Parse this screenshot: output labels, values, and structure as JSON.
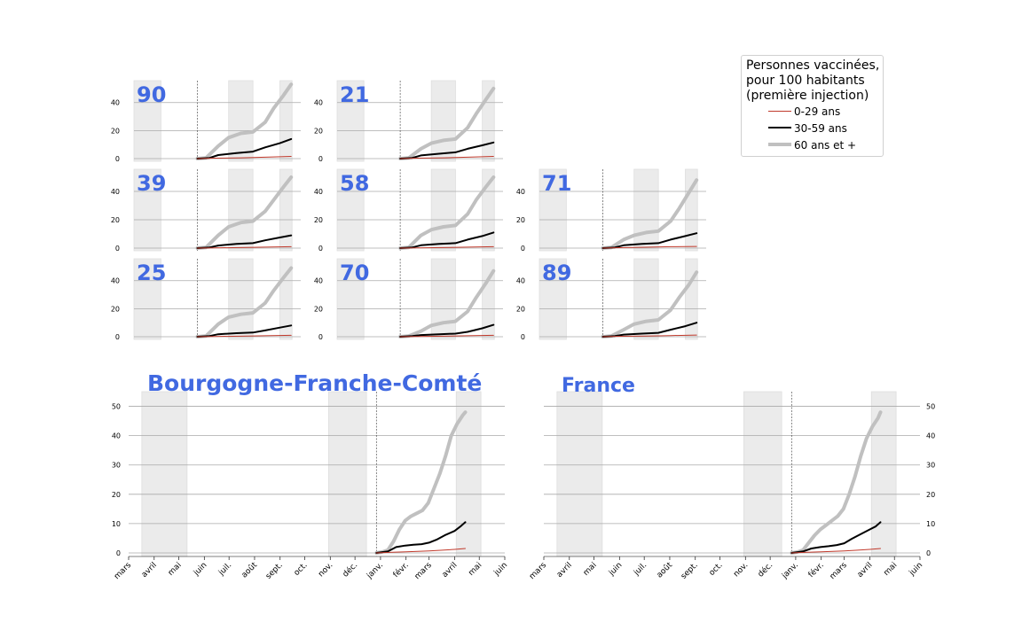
{
  "legend": {
    "title": "Personnes vaccinées,\npour 100 habitants\n(première injection)",
    "items": [
      {
        "key": "y0_29",
        "label": "0-29 ans",
        "color": "#c0392b"
      },
      {
        "key": "y30_59",
        "label": "30-59 ans",
        "color": "#000000"
      },
      {
        "key": "y60",
        "label": "60 ans et +",
        "color": "#c0c0c0"
      }
    ]
  },
  "chart_data": [
    {
      "type": "line",
      "title": "90",
      "yticks": [
        0,
        20,
        40
      ],
      "ylim": [
        -1,
        55
      ],
      "grid": true,
      "series": [
        {
          "name": "0-29 ans",
          "color": "#c0392b",
          "x": [
            "2020-12-27",
            "2021-01-15",
            "2021-02-15",
            "2021-03-15",
            "2021-04-14"
          ],
          "values": [
            0,
            0.3,
            0.6,
            1.0,
            1.6
          ]
        },
        {
          "name": "30-59 ans",
          "color": "#000000",
          "x": [
            "2020-12-27",
            "2021-01-10",
            "2021-01-20",
            "2021-02-10",
            "2021-03-01",
            "2021-03-15",
            "2021-04-01",
            "2021-04-14"
          ],
          "values": [
            0,
            0.5,
            2.5,
            4,
            5,
            8,
            11,
            14
          ]
        },
        {
          "name": "60 ans et +",
          "color": "#c0c0c0",
          "x": [
            "2020-12-27",
            "2021-01-06",
            "2021-01-20",
            "2021-02-01",
            "2021-02-15",
            "2021-03-01",
            "2021-03-15",
            "2021-03-25",
            "2021-04-05",
            "2021-04-14"
          ],
          "values": [
            0,
            0.5,
            9,
            15,
            18,
            19,
            26,
            36,
            45,
            53
          ]
        }
      ]
    },
    {
      "type": "line",
      "title": "21",
      "yticks": [
        0,
        20,
        40
      ],
      "ylim": [
        -1,
        55
      ],
      "grid": true,
      "series": [
        {
          "name": "0-29 ans",
          "color": "#c0392b",
          "x": [
            "2020-12-27",
            "2021-01-15",
            "2021-02-15",
            "2021-03-15",
            "2021-04-14"
          ],
          "values": [
            0,
            0.3,
            0.6,
            1.0,
            1.6
          ]
        },
        {
          "name": "30-59 ans",
          "color": "#000000",
          "x": [
            "2020-12-27",
            "2021-01-10",
            "2021-01-20",
            "2021-02-10",
            "2021-03-01",
            "2021-03-15",
            "2021-04-01",
            "2021-04-14"
          ],
          "values": [
            0,
            0.5,
            2.3,
            3.5,
            4.5,
            7,
            9.5,
            11.5
          ]
        },
        {
          "name": "60 ans et +",
          "color": "#c0c0c0",
          "x": [
            "2020-12-27",
            "2021-01-06",
            "2021-01-20",
            "2021-02-01",
            "2021-02-15",
            "2021-03-01",
            "2021-03-15",
            "2021-03-25",
            "2021-04-05",
            "2021-04-14"
          ],
          "values": [
            0,
            0.5,
            7,
            11,
            13,
            14,
            22,
            32,
            42,
            50
          ]
        }
      ]
    },
    {
      "type": "line",
      "title": "39",
      "yticks": [
        0,
        20,
        40
      ],
      "ylim": [
        -1,
        55
      ],
      "grid": true,
      "series": [
        {
          "name": "0-29 ans",
          "color": "#c0392b",
          "x": [
            "2020-12-27",
            "2021-01-15",
            "2021-02-15",
            "2021-03-15",
            "2021-04-14"
          ],
          "values": [
            0,
            0.2,
            0.4,
            0.7,
            1.0
          ]
        },
        {
          "name": "30-59 ans",
          "color": "#000000",
          "x": [
            "2020-12-27",
            "2021-01-10",
            "2021-01-20",
            "2021-02-10",
            "2021-03-01",
            "2021-03-15",
            "2021-04-01",
            "2021-04-14"
          ],
          "values": [
            0,
            0.5,
            1.8,
            3,
            3.5,
            5.5,
            7.5,
            9
          ]
        },
        {
          "name": "60 ans et +",
          "color": "#c0c0c0",
          "x": [
            "2020-12-27",
            "2021-01-06",
            "2021-01-20",
            "2021-02-01",
            "2021-02-15",
            "2021-03-01",
            "2021-03-15",
            "2021-03-25",
            "2021-04-05",
            "2021-04-14"
          ],
          "values": [
            0,
            0.5,
            9,
            15,
            18,
            19,
            26,
            34,
            43,
            50
          ]
        }
      ]
    },
    {
      "type": "line",
      "title": "58",
      "yticks": [
        0,
        20,
        40
      ],
      "ylim": [
        -1,
        55
      ],
      "grid": true,
      "series": [
        {
          "name": "0-29 ans",
          "color": "#c0392b",
          "x": [
            "2020-12-27",
            "2021-01-15",
            "2021-02-15",
            "2021-03-15",
            "2021-04-14"
          ],
          "values": [
            0,
            0.2,
            0.4,
            0.7,
            1.0
          ]
        },
        {
          "name": "30-59 ans",
          "color": "#000000",
          "x": [
            "2020-12-27",
            "2021-01-10",
            "2021-01-20",
            "2021-02-10",
            "2021-03-01",
            "2021-03-15",
            "2021-04-01",
            "2021-04-14"
          ],
          "values": [
            0,
            0.5,
            2,
            3,
            3.5,
            6,
            8.5,
            11
          ]
        },
        {
          "name": "60 ans et +",
          "color": "#c0c0c0",
          "x": [
            "2020-12-27",
            "2021-01-06",
            "2021-01-20",
            "2021-02-01",
            "2021-02-15",
            "2021-03-01",
            "2021-03-15",
            "2021-03-25",
            "2021-04-05",
            "2021-04-14"
          ],
          "values": [
            0,
            0.5,
            9,
            13,
            15,
            16,
            24,
            34,
            43,
            50
          ]
        }
      ]
    },
    {
      "type": "line",
      "title": "71",
      "yticks": [
        0,
        20,
        40
      ],
      "ylim": [
        -1,
        55
      ],
      "grid": true,
      "series": [
        {
          "name": "0-29 ans",
          "color": "#c0392b",
          "x": [
            "2020-12-27",
            "2021-01-15",
            "2021-02-15",
            "2021-03-15",
            "2021-04-14"
          ],
          "values": [
            0,
            0.3,
            0.6,
            1.0,
            1.2
          ]
        },
        {
          "name": "30-59 ans",
          "color": "#000000",
          "x": [
            "2020-12-27",
            "2021-01-10",
            "2021-01-20",
            "2021-02-10",
            "2021-03-01",
            "2021-03-15",
            "2021-04-01",
            "2021-04-14"
          ],
          "values": [
            0,
            0.5,
            2,
            3,
            3.5,
            6,
            8.5,
            10.5
          ]
        },
        {
          "name": "60 ans et +",
          "color": "#c0c0c0",
          "x": [
            "2020-12-27",
            "2021-01-06",
            "2021-01-20",
            "2021-02-01",
            "2021-02-15",
            "2021-03-01",
            "2021-03-15",
            "2021-03-25",
            "2021-04-05",
            "2021-04-14"
          ],
          "values": [
            0,
            0.5,
            6,
            9,
            11,
            12,
            19,
            28,
            39,
            48
          ]
        }
      ]
    },
    {
      "type": "line",
      "title": "25",
      "yticks": [
        0,
        20,
        40
      ],
      "ylim": [
        -1,
        55
      ],
      "grid": true,
      "series": [
        {
          "name": "0-29 ans",
          "color": "#c0392b",
          "x": [
            "2020-12-27",
            "2021-01-15",
            "2021-02-15",
            "2021-03-15",
            "2021-04-14"
          ],
          "values": [
            0,
            0.2,
            0.4,
            0.7,
            1.0
          ]
        },
        {
          "name": "30-59 ans",
          "color": "#000000",
          "x": [
            "2020-12-27",
            "2021-01-10",
            "2021-01-20",
            "2021-02-10",
            "2021-03-01",
            "2021-03-15",
            "2021-04-01",
            "2021-04-14"
          ],
          "values": [
            0,
            0.5,
            1.8,
            2.5,
            3,
            4.5,
            6.5,
            8
          ]
        },
        {
          "name": "60 ans et +",
          "color": "#c0c0c0",
          "x": [
            "2020-12-27",
            "2021-01-06",
            "2021-01-20",
            "2021-02-01",
            "2021-02-15",
            "2021-03-01",
            "2021-03-15",
            "2021-03-25",
            "2021-04-05",
            "2021-04-14"
          ],
          "values": [
            0,
            0.5,
            9,
            14,
            16,
            17,
            24,
            33,
            42,
            49
          ]
        }
      ]
    },
    {
      "type": "line",
      "title": "70",
      "yticks": [
        0,
        20,
        40
      ],
      "ylim": [
        -1,
        55
      ],
      "grid": true,
      "series": [
        {
          "name": "0-29 ans",
          "color": "#c0392b",
          "x": [
            "2020-12-27",
            "2021-01-15",
            "2021-02-15",
            "2021-03-15",
            "2021-04-14"
          ],
          "values": [
            0,
            0.2,
            0.4,
            0.7,
            1.0
          ]
        },
        {
          "name": "30-59 ans",
          "color": "#000000",
          "x": [
            "2020-12-27",
            "2021-01-10",
            "2021-01-20",
            "2021-02-10",
            "2021-03-01",
            "2021-03-15",
            "2021-04-01",
            "2021-04-14"
          ],
          "values": [
            0,
            0.5,
            1.2,
            1.8,
            2.2,
            3.5,
            6,
            8.5
          ]
        },
        {
          "name": "60 ans et +",
          "color": "#c0c0c0",
          "x": [
            "2020-12-27",
            "2021-01-06",
            "2021-01-20",
            "2021-02-01",
            "2021-02-15",
            "2021-03-01",
            "2021-03-15",
            "2021-03-25",
            "2021-04-05",
            "2021-04-14"
          ],
          "values": [
            0,
            0.5,
            4,
            8,
            10,
            11,
            18,
            28,
            38,
            47
          ]
        }
      ]
    },
    {
      "type": "line",
      "title": "89",
      "yticks": [
        0,
        20,
        40
      ],
      "ylim": [
        -1,
        55
      ],
      "grid": true,
      "series": [
        {
          "name": "0-29 ans",
          "color": "#c0392b",
          "x": [
            "2020-12-27",
            "2021-01-15",
            "2021-02-15",
            "2021-03-15",
            "2021-04-14"
          ],
          "values": [
            0,
            0.3,
            0.5,
            0.8,
            1.2
          ]
        },
        {
          "name": "30-59 ans",
          "color": "#000000",
          "x": [
            "2020-12-27",
            "2021-01-10",
            "2021-01-20",
            "2021-02-10",
            "2021-03-01",
            "2021-03-15",
            "2021-04-01",
            "2021-04-14"
          ],
          "values": [
            0,
            0.5,
            1.5,
            2.2,
            2.8,
            5,
            7.5,
            10
          ]
        },
        {
          "name": "60 ans et +",
          "color": "#c0c0c0",
          "x": [
            "2020-12-27",
            "2021-01-06",
            "2021-01-20",
            "2021-02-01",
            "2021-02-15",
            "2021-03-01",
            "2021-03-15",
            "2021-03-25",
            "2021-04-05",
            "2021-04-14"
          ],
          "values": [
            0,
            0.5,
            5,
            9,
            11,
            12,
            19,
            28,
            37,
            46
          ]
        }
      ]
    },
    {
      "type": "line",
      "title": "Bourgogne-Franche-Comté",
      "xticks": [
        "mars",
        "avril",
        "mai",
        "juin",
        "juil.",
        "août",
        "sept.",
        "oct.",
        "nov.",
        "déc.",
        "janv.",
        "févr.",
        "mars",
        "avril",
        "mai",
        "juin"
      ],
      "yticks": [
        0,
        10,
        20,
        30,
        40,
        50
      ],
      "ylim": [
        -1,
        56
      ],
      "grid": true,
      "series": [
        {
          "name": "0-29 ans",
          "color": "#c0392b",
          "x": [
            "2020-12-27",
            "2021-01-15",
            "2021-02-01",
            "2021-02-15",
            "2021-03-01",
            "2021-03-15",
            "2021-04-01",
            "2021-04-14"
          ],
          "values": [
            0,
            0.2,
            0.4,
            0.5,
            0.7,
            0.9,
            1.2,
            1.5
          ]
        },
        {
          "name": "30-59 ans",
          "color": "#000000",
          "x": [
            "2020-12-27",
            "2021-01-10",
            "2021-01-20",
            "2021-01-31",
            "2021-02-10",
            "2021-02-20",
            "2021-03-01",
            "2021-03-10",
            "2021-03-20",
            "2021-04-01",
            "2021-04-08",
            "2021-04-14"
          ],
          "values": [
            0,
            0.5,
            2,
            2.5,
            2.8,
            3,
            3.5,
            4.5,
            6,
            7.5,
            9,
            10.5
          ]
        },
        {
          "name": "60 ans et +",
          "color": "#c0c0c0",
          "x": [
            "2020-12-27",
            "2021-01-03",
            "2021-01-10",
            "2021-01-17",
            "2021-01-24",
            "2021-01-31",
            "2021-02-07",
            "2021-02-14",
            "2021-02-21",
            "2021-02-28",
            "2021-03-07",
            "2021-03-14",
            "2021-03-21",
            "2021-03-28",
            "2021-04-04",
            "2021-04-11",
            "2021-04-14"
          ],
          "values": [
            0,
            0.3,
            1,
            4,
            8,
            11,
            12.5,
            13.5,
            14.5,
            17,
            22,
            27,
            33,
            40,
            44,
            47,
            48
          ]
        }
      ]
    },
    {
      "type": "line",
      "title": "France",
      "xticks": [
        "mars",
        "avril",
        "mai",
        "juin",
        "juil.",
        "août",
        "sept.",
        "oct.",
        "nov.",
        "déc.",
        "janv.",
        "févr.",
        "mars",
        "avril",
        "mai",
        "juin"
      ],
      "yticks": [
        0,
        10,
        20,
        30,
        40,
        50
      ],
      "ylim": [
        -1,
        56
      ],
      "grid": true,
      "series": [
        {
          "name": "0-29 ans",
          "color": "#c0392b",
          "x": [
            "2020-12-27",
            "2021-01-15",
            "2021-02-01",
            "2021-02-15",
            "2021-03-01",
            "2021-03-15",
            "2021-04-01",
            "2021-04-14"
          ],
          "values": [
            0,
            0.2,
            0.4,
            0.5,
            0.7,
            0.9,
            1.2,
            1.5
          ]
        },
        {
          "name": "30-59 ans",
          "color": "#000000",
          "x": [
            "2020-12-27",
            "2021-01-10",
            "2021-01-20",
            "2021-01-31",
            "2021-02-10",
            "2021-02-20",
            "2021-03-01",
            "2021-03-10",
            "2021-03-20",
            "2021-04-01",
            "2021-04-08",
            "2021-04-14"
          ],
          "values": [
            0,
            0.5,
            1.5,
            2,
            2.3,
            2.7,
            3.3,
            4.8,
            6.3,
            8,
            9,
            10.5
          ]
        },
        {
          "name": "60 ans et +",
          "color": "#c0c0c0",
          "x": [
            "2020-12-27",
            "2021-01-03",
            "2021-01-10",
            "2021-01-17",
            "2021-01-24",
            "2021-01-31",
            "2021-02-07",
            "2021-02-14",
            "2021-02-21",
            "2021-02-28",
            "2021-03-07",
            "2021-03-14",
            "2021-03-21",
            "2021-03-28",
            "2021-04-04",
            "2021-04-11",
            "2021-04-14"
          ],
          "values": [
            0,
            0.3,
            1,
            3.5,
            6,
            8,
            9.5,
            11,
            12.5,
            15,
            20,
            26,
            33,
            39,
            43,
            46,
            48
          ]
        }
      ]
    }
  ]
}
